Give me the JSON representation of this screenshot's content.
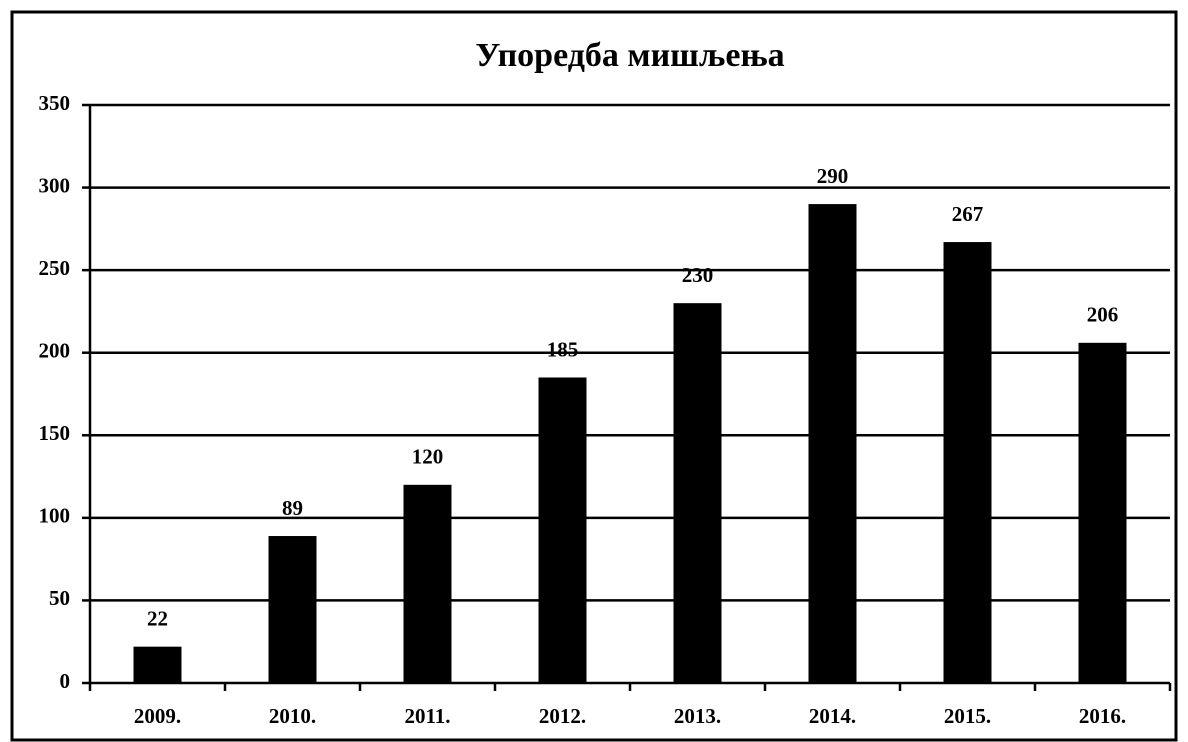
{
  "chart_data": {
    "type": "bar",
    "title": "Упоредба мишљења",
    "categories": [
      "2009.",
      "2010.",
      "2011.",
      "2012.",
      "2013.",
      "2014.",
      "2015.",
      "2016."
    ],
    "values": [
      22,
      89,
      120,
      185,
      230,
      290,
      267,
      206
    ],
    "color": "#000000",
    "ylim": [
      0,
      350
    ],
    "yticks": [
      0,
      50,
      100,
      150,
      200,
      250,
      300,
      350
    ],
    "grid": true
  }
}
